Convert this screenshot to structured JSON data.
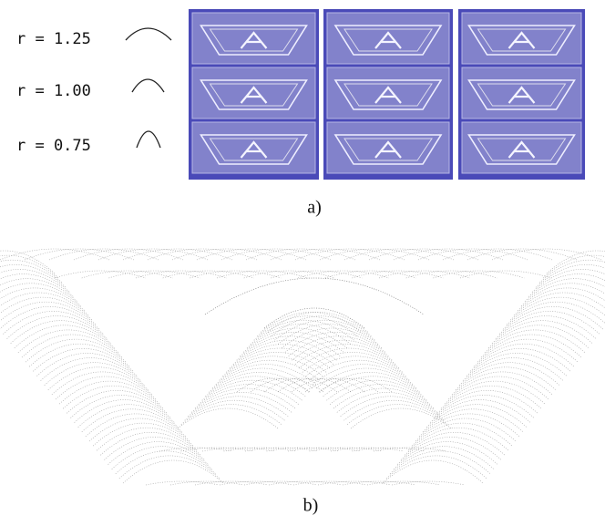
{
  "panel_a": {
    "rows": [
      {
        "label": "r = 1.25"
      },
      {
        "label": "r = 1.00"
      },
      {
        "label": "r = 0.75"
      }
    ],
    "caption": "a)"
  },
  "panel_b": {
    "caption": "b)"
  }
}
